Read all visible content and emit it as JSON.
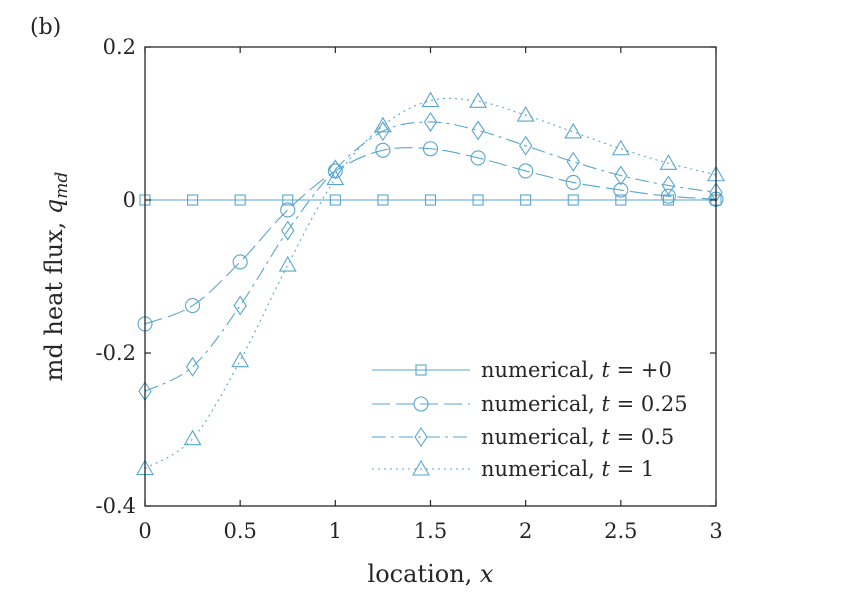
{
  "panel_label": "(b)",
  "colors": {
    "series": "#58a6cf",
    "axis": "#262626",
    "background": "#ffffff"
  },
  "chart_data": {
    "type": "line",
    "xlabel": "location, x",
    "ylabel": "md heat flux, q_md",
    "xlim": [
      0,
      3
    ],
    "ylim": [
      -0.4,
      0.2
    ],
    "xticks": [
      0,
      0.5,
      1,
      1.5,
      2,
      2.5,
      3
    ],
    "xtick_labels": [
      "0",
      "0.5",
      "1",
      "1.5",
      "2",
      "2.5",
      "3"
    ],
    "yticks": [
      -0.4,
      -0.2,
      0,
      0.2
    ],
    "ytick_labels": [
      "-0.4",
      "-0.2",
      "0",
      "0.2"
    ],
    "grid": false,
    "legend_position": "lower-right",
    "series": [
      {
        "name": "numerical, t = +0",
        "legend_prefix": "numerical, ",
        "legend_var": "t",
        "legend_suffix": " = +0",
        "marker": "square",
        "dash": "",
        "x": [
          0,
          0.25,
          0.5,
          0.75,
          1,
          1.25,
          1.5,
          1.75,
          2,
          2.25,
          2.5,
          2.75,
          3
        ],
        "y": [
          0,
          0,
          0,
          0,
          0,
          0,
          0,
          0,
          0,
          0,
          0,
          0,
          0
        ]
      },
      {
        "name": "numerical, t = 0.25",
        "legend_prefix": "numerical, ",
        "legend_var": "t",
        "legend_suffix": " = 0.25",
        "marker": "circle",
        "dash": "18 6",
        "x": [
          0,
          0.25,
          0.5,
          0.75,
          1,
          1.25,
          1.5,
          1.75,
          2,
          2.25,
          2.5,
          2.75,
          3
        ],
        "y": [
          -0.162,
          -0.138,
          -0.081,
          -0.013,
          0.038,
          0.065,
          0.067,
          0.055,
          0.038,
          0.023,
          0.013,
          0.005,
          0.001
        ]
      },
      {
        "name": "numerical, t = 0.5",
        "legend_prefix": "numerical, ",
        "legend_var": "t",
        "legend_suffix": " = 0.5",
        "marker": "diamond",
        "dash": "14 5 3 5",
        "x": [
          0,
          0.25,
          0.5,
          0.75,
          1,
          1.25,
          1.5,
          1.75,
          2,
          2.25,
          2.5,
          2.75,
          3
        ],
        "y": [
          -0.25,
          -0.218,
          -0.138,
          -0.04,
          0.04,
          0.09,
          0.102,
          0.091,
          0.071,
          0.05,
          0.032,
          0.019,
          0.01
        ]
      },
      {
        "name": "numerical, t = 1",
        "legend_prefix": "numerical, ",
        "legend_var": "t",
        "legend_suffix": " = 1",
        "marker": "triangle",
        "dash": "2 4",
        "x": [
          0,
          0.25,
          0.5,
          0.75,
          1,
          1.25,
          1.5,
          1.75,
          2,
          2.25,
          2.5,
          2.75,
          3
        ],
        "y": [
          -0.351,
          -0.312,
          -0.21,
          -0.085,
          0.028,
          0.097,
          0.13,
          0.129,
          0.111,
          0.089,
          0.067,
          0.048,
          0.033
        ]
      }
    ]
  }
}
